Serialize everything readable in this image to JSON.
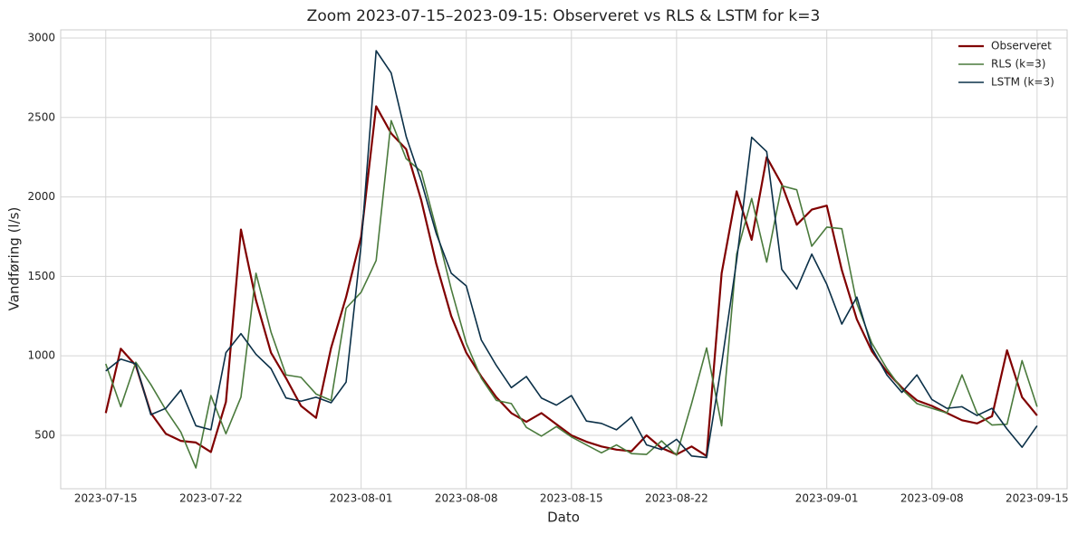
{
  "chart_data": {
    "type": "line",
    "title": "Zoom 2023-07-15–2023-09-15: Observeret vs RLS & LSTM for k=3",
    "x_label": "Dato",
    "y_label": "Vandføring (l/s)",
    "x": [
      "2023-07-15",
      "2023-07-16",
      "2023-07-17",
      "2023-07-18",
      "2023-07-19",
      "2023-07-20",
      "2023-07-21",
      "2023-07-22",
      "2023-07-23",
      "2023-07-24",
      "2023-07-25",
      "2023-07-26",
      "2023-07-27",
      "2023-07-28",
      "2023-07-29",
      "2023-07-30",
      "2023-07-31",
      "2023-08-01",
      "2023-08-02",
      "2023-08-03",
      "2023-08-04",
      "2023-08-05",
      "2023-08-06",
      "2023-08-07",
      "2023-08-08",
      "2023-08-09",
      "2023-08-10",
      "2023-08-11",
      "2023-08-12",
      "2023-08-13",
      "2023-08-14",
      "2023-08-15",
      "2023-08-16",
      "2023-08-17",
      "2023-08-18",
      "2023-08-19",
      "2023-08-20",
      "2023-08-21",
      "2023-08-22",
      "2023-08-23",
      "2023-08-24",
      "2023-08-25",
      "2023-08-26",
      "2023-08-27",
      "2023-08-28",
      "2023-08-29",
      "2023-08-30",
      "2023-08-31",
      "2023-09-01",
      "2023-09-02",
      "2023-09-03",
      "2023-09-04",
      "2023-09-05",
      "2023-09-06",
      "2023-09-07",
      "2023-09-08",
      "2023-09-09",
      "2023-09-10",
      "2023-09-11",
      "2023-09-12",
      "2023-09-13",
      "2023-09-14",
      "2023-09-15"
    ],
    "series": [
      {
        "name": "Observeret",
        "color": "#800000",
        "width": 2.2,
        "values": [
          640,
          1045,
          940,
          640,
          510,
          465,
          455,
          395,
          710,
          1795,
          1350,
          1020,
          860,
          685,
          610,
          1050,
          1370,
          1750,
          2570,
          2400,
          2300,
          1980,
          1580,
          1250,
          1020,
          870,
          740,
          640,
          585,
          640,
          570,
          500,
          460,
          430,
          410,
          400,
          500,
          420,
          380,
          430,
          370,
          1520,
          2035,
          1730,
          2250,
          2080,
          1825,
          1920,
          1945,
          1540,
          1230,
          1030,
          900,
          800,
          720,
          685,
          640,
          595,
          575,
          620,
          1035,
          740,
          625
        ]
      },
      {
        "name": "RLS (k=3)",
        "color": "#4a7a3c",
        "width": 1.6,
        "values": [
          950,
          680,
          960,
          820,
          660,
          520,
          295,
          750,
          510,
          740,
          1520,
          1150,
          880,
          865,
          760,
          720,
          1300,
          1400,
          1600,
          2480,
          2240,
          2160,
          1800,
          1420,
          1080,
          860,
          720,
          700,
          550,
          495,
          555,
          490,
          440,
          390,
          440,
          385,
          380,
          465,
          375,
          700,
          1050,
          560,
          1640,
          1990,
          1590,
          2070,
          2045,
          1690,
          1810,
          1800,
          1330,
          1080,
          920,
          790,
          700,
          670,
          640,
          880,
          640,
          565,
          570,
          970,
          680
        ]
      },
      {
        "name": "LSTM (k=3)",
        "color": "#0b3048",
        "width": 1.6,
        "values": [
          905,
          980,
          950,
          630,
          670,
          785,
          560,
          535,
          1020,
          1140,
          1010,
          920,
          735,
          715,
          740,
          705,
          835,
          1700,
          2920,
          2780,
          2380,
          2100,
          1770,
          1520,
          1440,
          1100,
          940,
          800,
          870,
          735,
          690,
          750,
          590,
          575,
          535,
          615,
          440,
          410,
          475,
          370,
          360,
          950,
          1600,
          2375,
          2285,
          1545,
          1420,
          1640,
          1450,
          1200,
          1370,
          1050,
          880,
          770,
          880,
          725,
          670,
          680,
          625,
          670,
          540,
          425,
          560
        ]
      }
    ],
    "xlim": [
      "2023-07-12",
      "2023-09-17"
    ],
    "xticks": [
      "2023-07-15",
      "2023-07-22",
      "2023-08-01",
      "2023-08-08",
      "2023-08-15",
      "2023-08-22",
      "2023-09-01",
      "2023-09-08",
      "2023-09-15"
    ],
    "ylim": [
      164,
      3051
    ],
    "yticks": [
      500,
      1000,
      1500,
      2000,
      2500,
      3000
    ],
    "grid": true,
    "legend": "upper right"
  }
}
